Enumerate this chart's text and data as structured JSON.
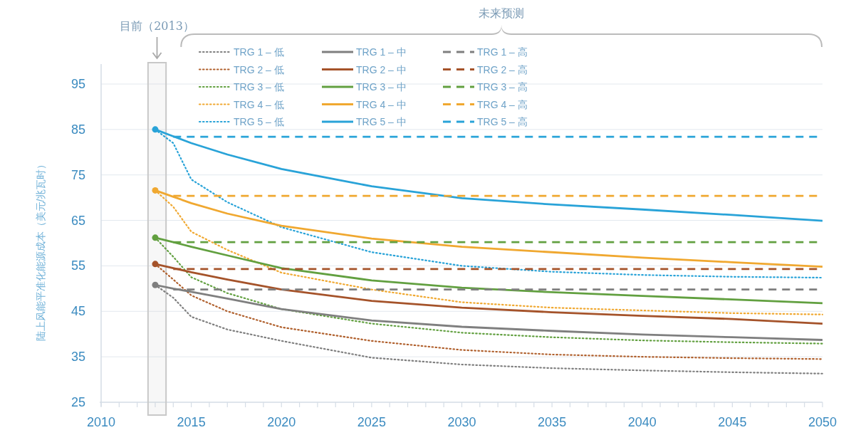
{
  "chart_data": {
    "type": "line",
    "ylabel": "陆上风能平准化能源成本（美元/兆瓦时）",
    "xlim": [
      2010,
      2050
    ],
    "ylim": [
      25,
      95
    ],
    "xticks": [
      2010,
      {
        "value": 2011,
        "label": null
      },
      {
        "value": 2012,
        "label": null
      },
      {
        "value": 2013,
        "label": null
      },
      {
        "value": 2014,
        "label": null
      },
      2015,
      {
        "value": 2016,
        "label": null
      },
      {
        "value": 2017,
        "label": null
      },
      {
        "value": 2018,
        "label": null
      },
      {
        "value": 2019,
        "label": null
      },
      2020,
      {
        "value": 2021,
        "label": null
      },
      {
        "value": 2022,
        "label": null
      },
      {
        "value": 2023,
        "label": null
      },
      {
        "value": 2024,
        "label": null
      },
      2025,
      {
        "value": 2026,
        "label": null
      },
      {
        "value": 2027,
        "label": null
      },
      {
        "value": 2028,
        "label": null
      },
      {
        "value": 2029,
        "label": null
      },
      2030,
      {
        "value": 2031,
        "label": null
      },
      {
        "value": 2032,
        "label": null
      },
      {
        "value": 2033,
        "label": null
      },
      {
        "value": 2034,
        "label": null
      },
      2035,
      {
        "value": 2036,
        "label": null
      },
      {
        "value": 2037,
        "label": null
      },
      {
        "value": 2038,
        "label": null
      },
      {
        "value": 2039,
        "label": null
      },
      2040,
      {
        "value": 2041,
        "label": null
      },
      {
        "value": 2042,
        "label": null
      },
      {
        "value": 2043,
        "label": null
      },
      {
        "value": 2044,
        "label": null
      },
      2045,
      {
        "value": 2046,
        "label": null
      },
      {
        "value": 2047,
        "label": null
      },
      {
        "value": 2048,
        "label": null
      },
      {
        "value": 2049,
        "label": null
      },
      2050
    ],
    "yticks": [
      25,
      35,
      45,
      55,
      65,
      75,
      85,
      95
    ],
    "grid": "y",
    "legend": "top",
    "x": [
      2013,
      2014,
      2015,
      2017,
      2020,
      2025,
      2030,
      2035,
      2040,
      2045,
      2050
    ],
    "series": [
      {
        "name": "TRG 1 – 低",
        "color": "#7f7f7f",
        "line_style": "dotted",
        "values": [
          50.8,
          48,
          43.8,
          41,
          38.5,
          34.8,
          33.3,
          32.5,
          32,
          31.6,
          31.3
        ]
      },
      {
        "name": "TRG 2 – 低",
        "color": "#b0602d",
        "line_style": "dotted",
        "values": [
          55.4,
          52,
          48.5,
          45,
          41.5,
          38.5,
          36.5,
          35.5,
          35,
          34.7,
          34.5
        ]
      },
      {
        "name": "TRG 3 – 低",
        "color": "#62a040",
        "line_style": "dotted",
        "values": [
          61.2,
          57,
          52.5,
          49,
          45.5,
          42.3,
          40.3,
          39.3,
          38.6,
          38.2,
          37.9
        ]
      },
      {
        "name": "TRG 4 – 低",
        "color": "#f0a830",
        "line_style": "dotted",
        "values": [
          71.6,
          68,
          62.5,
          58.5,
          53.5,
          49.8,
          47,
          45.8,
          45.2,
          44.6,
          44.3
        ]
      },
      {
        "name": "TRG 5 – 低",
        "color": "#29a3d8",
        "line_style": "dotted",
        "values": [
          85,
          82,
          74,
          69,
          63.5,
          58,
          55,
          53.7,
          53,
          52.6,
          52.4
        ]
      },
      {
        "name": "TRG 1 – 中",
        "color": "#7f7f7f",
        "line_style": "solid",
        "values": [
          50.8,
          50,
          49.3,
          47.8,
          45.5,
          43,
          41.6,
          40.7,
          39.9,
          39.3,
          38.7
        ]
      },
      {
        "name": "TRG 2 – 中",
        "color": "#a5532a",
        "line_style": "solid",
        "values": [
          55.4,
          54.5,
          53.6,
          52,
          49.8,
          47.3,
          45.8,
          44.8,
          44,
          43.3,
          42.3
        ]
      },
      {
        "name": "TRG 3 – 中",
        "color": "#62a040",
        "line_style": "solid",
        "values": [
          61.2,
          60.2,
          59.2,
          57.3,
          54.5,
          51.8,
          50.2,
          49.2,
          48.4,
          47.6,
          46.8
        ]
      },
      {
        "name": "TRG 4 – 中",
        "color": "#f0a830",
        "line_style": "solid",
        "values": [
          71.6,
          70.2,
          68.8,
          66.5,
          63.8,
          61,
          59.2,
          58,
          56.8,
          55.8,
          54.8
        ]
      },
      {
        "name": "TRG 5 – 中",
        "color": "#29a3d8",
        "line_style": "solid",
        "values": [
          85,
          83.5,
          82,
          79.5,
          76.3,
          72.5,
          69.9,
          68.5,
          67.4,
          66.2,
          64.9
        ]
      },
      {
        "name": "TRG 1 – 高",
        "color": "#7f7f7f",
        "line_style": "dashed",
        "x": [
          2014,
          2050
        ],
        "values": [
          49.8,
          49.8
        ]
      },
      {
        "name": "TRG 2 – 高",
        "color": "#a5532a",
        "line_style": "dashed",
        "x": [
          2014,
          2050
        ],
        "values": [
          54.3,
          54.3
        ]
      },
      {
        "name": "TRG 3 – 高",
        "color": "#62a040",
        "line_style": "dashed",
        "x": [
          2014,
          2050
        ],
        "values": [
          60.2,
          60.2
        ]
      },
      {
        "name": "TRG 4 – 高",
        "color": "#f0a830",
        "line_style": "dashed",
        "x": [
          2014,
          2050
        ],
        "values": [
          70.4,
          70.4
        ]
      },
      {
        "name": "TRG 5 – 高",
        "color": "#29a3d8",
        "line_style": "dashed",
        "x": [
          2014,
          2050
        ],
        "values": [
          83.4,
          83.4
        ]
      },
      {
        "type": "scatter",
        "marker": "circle",
        "x": [
          2013,
          2013,
          2013,
          2013,
          2013
        ],
        "values": [
          50.8,
          55.4,
          61.2,
          71.6,
          85
        ],
        "colors": [
          "#7f7f7f",
          "#a5532a",
          "#62a040",
          "#f0a830",
          "#29a3d8"
        ]
      }
    ],
    "bands": [
      {
        "axis": "x",
        "from": 2012.6,
        "to": 2013.6,
        "label": "目前（2013）",
        "color": "#c8c8c8"
      }
    ],
    "annotations": [
      "未来预测"
    ]
  }
}
